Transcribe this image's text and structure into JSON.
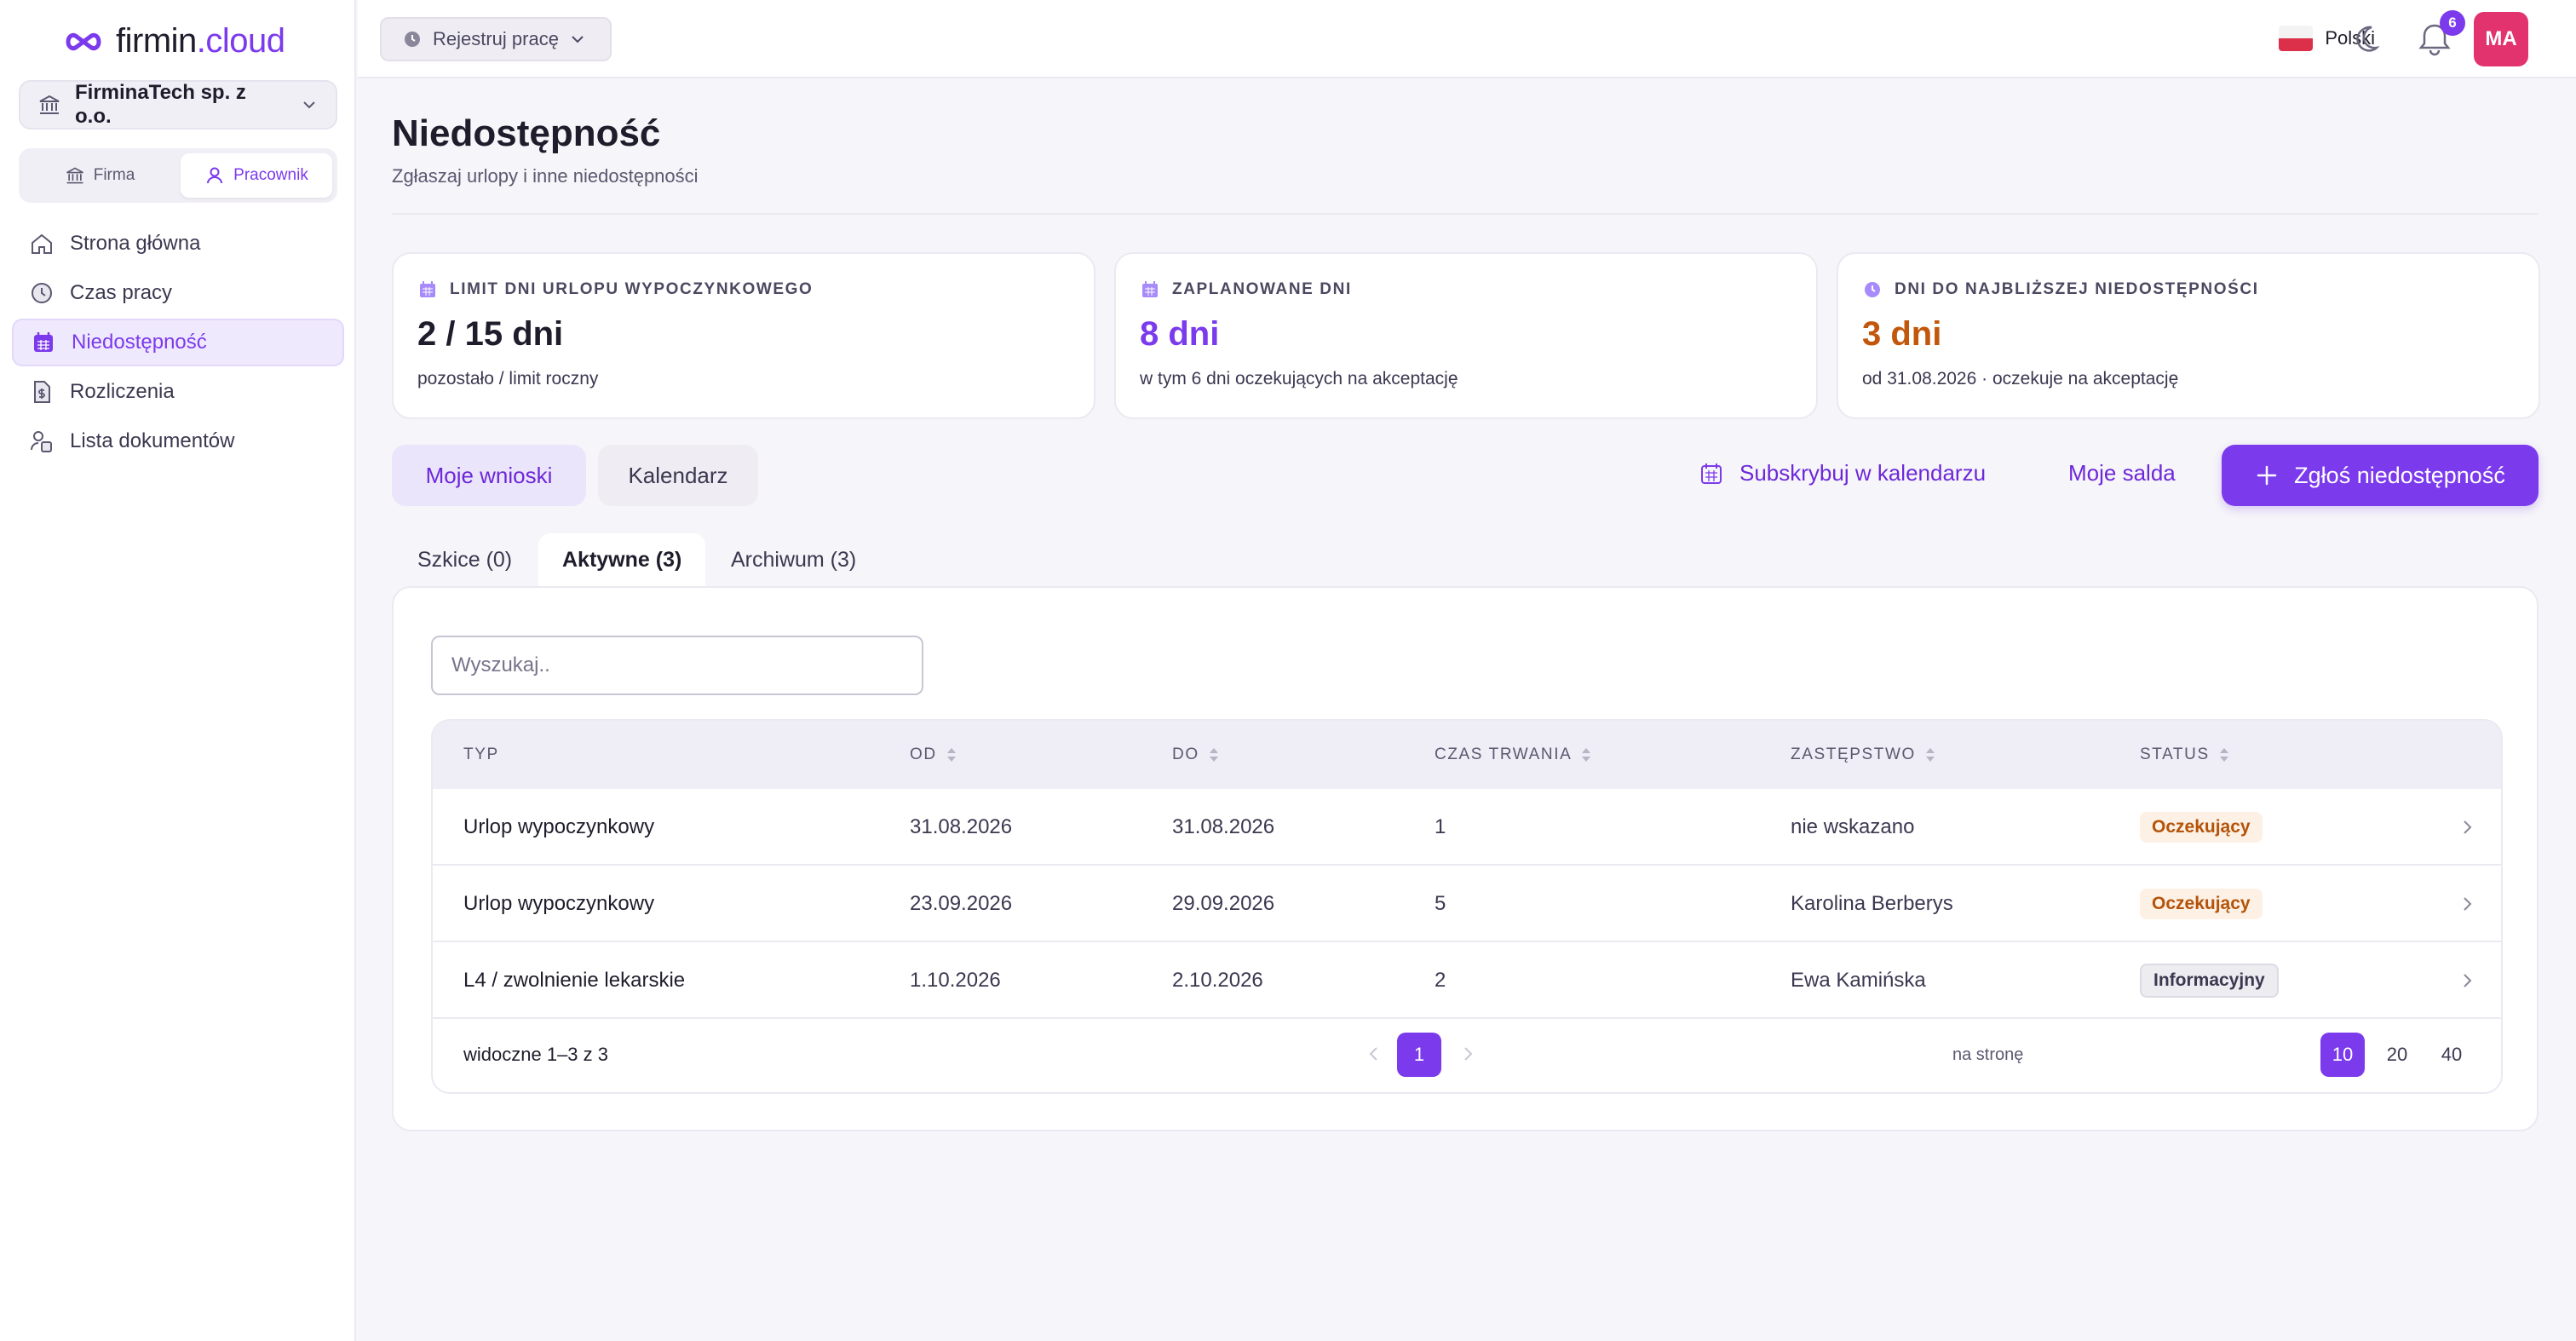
{
  "app": {
    "logo_main": "firmin",
    "logo_accent": ".cloud"
  },
  "sidebar": {
    "company": "FirminaTech sp. z o.o.",
    "switch": {
      "firma": "Firma",
      "pracownik": "Pracownik"
    },
    "items": [
      {
        "label": "Strona główna",
        "icon": "home-icon"
      },
      {
        "label": "Czas pracy",
        "icon": "clock-icon"
      },
      {
        "label": "Niedostępność",
        "icon": "calendar-icon"
      },
      {
        "label": "Rozliczenia",
        "icon": "document-dollar-icon"
      },
      {
        "label": "Lista dokumentów",
        "icon": "user-documents-icon"
      }
    ]
  },
  "topbar": {
    "register_label": "Rejestruj pracę",
    "language": "Polski",
    "notifications_count": "6",
    "avatar_initials": "MA"
  },
  "page": {
    "title": "Niedostępność",
    "subtitle": "Zgłaszaj urlopy i inne niedostępności"
  },
  "stats": [
    {
      "label": "LIMIT DNI URLOPU WYPOCZYNKOWEGO",
      "value": "2 / 15 dni",
      "desc": "pozostało / limit roczny",
      "color": "#1f1d2b"
    },
    {
      "label": "ZAPLANOWANE DNI",
      "value": "8 dni",
      "desc": "w tym 6 dni oczekujących na akceptację",
      "color": "#7c3aed"
    },
    {
      "label": "DNI DO NAJBLIŻSZEJ NIEDOSTĘPNOŚCI",
      "value": "3 dni",
      "desc": "od 31.08.2026 · oczekuje na akceptację",
      "color": "#c2570c"
    }
  ],
  "view_tabs": {
    "my_requests": "Moje wnioski",
    "calendar": "Kalendarz"
  },
  "actions": {
    "subscribe": "Subskrybuj w kalendarzu",
    "balances": "Moje salda",
    "report": "Zgłoś niedostępność"
  },
  "subtabs": {
    "drafts": "Szkice (0)",
    "active": "Aktywne (3)",
    "archive": "Archiwum (3)"
  },
  "search": {
    "placeholder": "Wyszukaj..",
    "value": ""
  },
  "table": {
    "columns": [
      "TYP",
      "OD",
      "DO",
      "CZAS TRWANIA",
      "ZASTĘPSTWO",
      "STATUS"
    ],
    "rows": [
      {
        "type": "Urlop wypoczynkowy",
        "from": "31.08.2026",
        "to": "31.08.2026",
        "duration": "1",
        "substitute": "nie wskazano",
        "status": "Oczekujący",
        "status_kind": "pending"
      },
      {
        "type": "Urlop wypoczynkowy",
        "from": "23.09.2026",
        "to": "29.09.2026",
        "duration": "5",
        "substitute": "Karolina Berberys",
        "status": "Oczekujący",
        "status_kind": "pending"
      },
      {
        "type": "L4 / zwolnienie lekarskie",
        "from": "1.10.2026",
        "to": "2.10.2026",
        "duration": "2",
        "substitute": "Ewa Kamińska",
        "status": "Informacyjny",
        "status_kind": "info"
      }
    ]
  },
  "pagination": {
    "visible": "widoczne 1–3 z 3",
    "current_page": "1",
    "per_page_label": "na stronę",
    "per_page_options": [
      "10",
      "20",
      "40"
    ],
    "per_page_selected": "10"
  }
}
